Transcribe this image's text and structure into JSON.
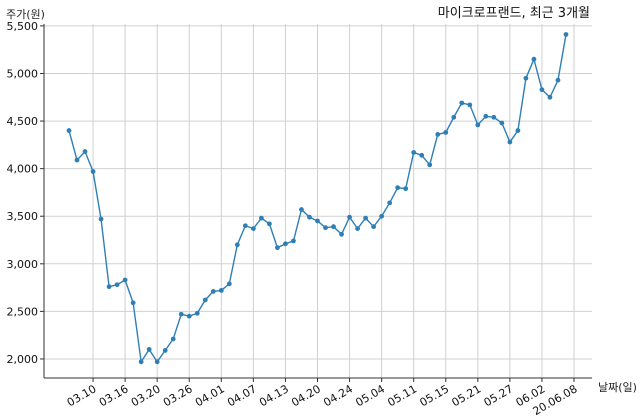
{
  "chart_data": {
    "type": "line",
    "title": "마이크로프랜드, 최근 3개월",
    "ylabel": "주가(원)",
    "xlabel": "날짜(일)",
    "ylim": [
      1800,
      5520
    ],
    "yticks": [
      2000,
      2500,
      3000,
      3500,
      4000,
      4500,
      5000,
      5500
    ],
    "ytick_labels": [
      "2,000",
      "2,500",
      "3,000",
      "3,500",
      "4,000",
      "4,500",
      "5,000",
      "5,500"
    ],
    "xtick_labels": [
      "03.10",
      "03.16",
      "03.20",
      "03.26",
      "04.01",
      "04.07",
      "04.13",
      "04.20",
      "04.24",
      "05.04",
      "05.11",
      "05.15",
      "05.21",
      "05.27",
      "06.02",
      "20.06.08"
    ],
    "xtick_index": [
      3,
      7,
      11,
      15,
      19,
      23,
      27,
      31,
      35,
      39,
      43,
      47,
      51,
      55,
      59,
      63
    ],
    "grid": true,
    "color": "#2f7fb5",
    "series": [
      {
        "values": [
          4400,
          4090,
          4180,
          3970,
          3470,
          2760,
          2780,
          2830,
          2590,
          1970,
          2100,
          1970,
          2090,
          2210,
          2470,
          2450,
          2480,
          2620,
          2710,
          2720,
          2790,
          3200,
          3400,
          3370,
          3480,
          3420,
          3170,
          3210,
          3240,
          3570,
          3490,
          3450,
          3380,
          3390,
          3310,
          3490,
          3370,
          3480,
          3390,
          3500,
          3640,
          3800,
          3790,
          4170,
          4140,
          4040,
          4360,
          4380,
          4540,
          4690,
          4670,
          4460,
          4550,
          4540,
          4480,
          4280,
          4400,
          4950,
          5150,
          4830,
          4750,
          4930,
          5410
        ]
      }
    ]
  }
}
